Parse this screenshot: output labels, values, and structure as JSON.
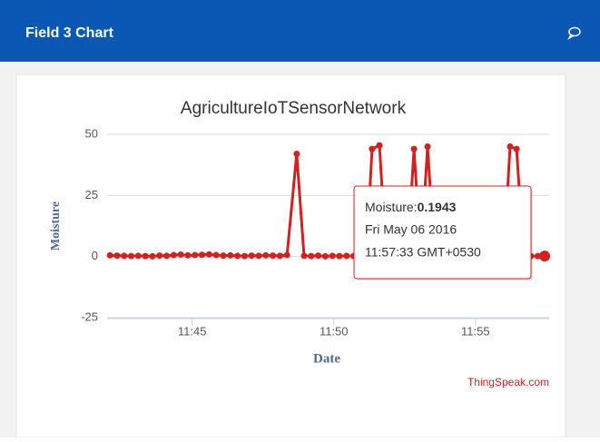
{
  "header": {
    "title": "Field 3 Chart"
  },
  "chart_data": {
    "type": "line",
    "title": "AgricultureIoTSensorNetwork",
    "x_label": "Date",
    "y_label": "Moisture",
    "credit": "ThingSpeak.com",
    "x": [
      702.1,
      702.35,
      702.6,
      702.85,
      703.1,
      703.35,
      703.6,
      703.85,
      704.1,
      704.35,
      704.6,
      704.85,
      705.1,
      705.35,
      705.6,
      705.85,
      706.1,
      706.35,
      706.6,
      706.85,
      707.1,
      707.35,
      707.6,
      707.85,
      708.1,
      708.35,
      708.69,
      708.95,
      709.2,
      709.45,
      709.7,
      709.95,
      710.2,
      710.45,
      710.7,
      710.95,
      711.15,
      711.35,
      711.61,
      711.85,
      712.1,
      712.35,
      712.6,
      712.83,
      713.07,
      713.31,
      713.55,
      713.8,
      714.05,
      714.3,
      714.55,
      714.8,
      715.05,
      715.3,
      715.55,
      715.8,
      716.0,
      716.22,
      716.45,
      716.7,
      716.95,
      717.2,
      717.44
    ],
    "series": [
      {
        "name": "Moisture",
        "color": "#d62020",
        "values": [
          0.5,
          0.4,
          0.3,
          0.2,
          0.3,
          0.2,
          0.1,
          0.4,
          0.3,
          0.6,
          0.8,
          0.5,
          0.6,
          0.7,
          0.9,
          0.6,
          0.4,
          0.5,
          0.3,
          0.2,
          0.4,
          0.3,
          0.5,
          0.4,
          0.3,
          0.6,
          42,
          0.3,
          0.2,
          0.4,
          0.1,
          0.3,
          0.2,
          0.3,
          0.2,
          0.4,
          0.5,
          44,
          45.5,
          0.3,
          0.2,
          0.3,
          0.2,
          44,
          0.3,
          45,
          0.2,
          0.3,
          0.2,
          0.4,
          0.3,
          0.2,
          0.3,
          0.2,
          0.4,
          0.3,
          0.2,
          45,
          44,
          0.3,
          0.2,
          0.2,
          0.1943
        ]
      }
    ],
    "xlim": [
      702,
      717.6
    ],
    "xticks": [
      {
        "value": 705,
        "label": "11:45"
      },
      {
        "value": 710,
        "label": "11:50"
      },
      {
        "value": 715,
        "label": "11:55"
      }
    ],
    "ylim": [
      -25,
      50
    ],
    "yticks": [
      -25,
      0,
      25,
      50
    ],
    "grid": true,
    "tooltip": {
      "label": "Moisture:",
      "date": "Fri May 06 2016",
      "time": "11:57:33 GMT+0530"
    }
  }
}
